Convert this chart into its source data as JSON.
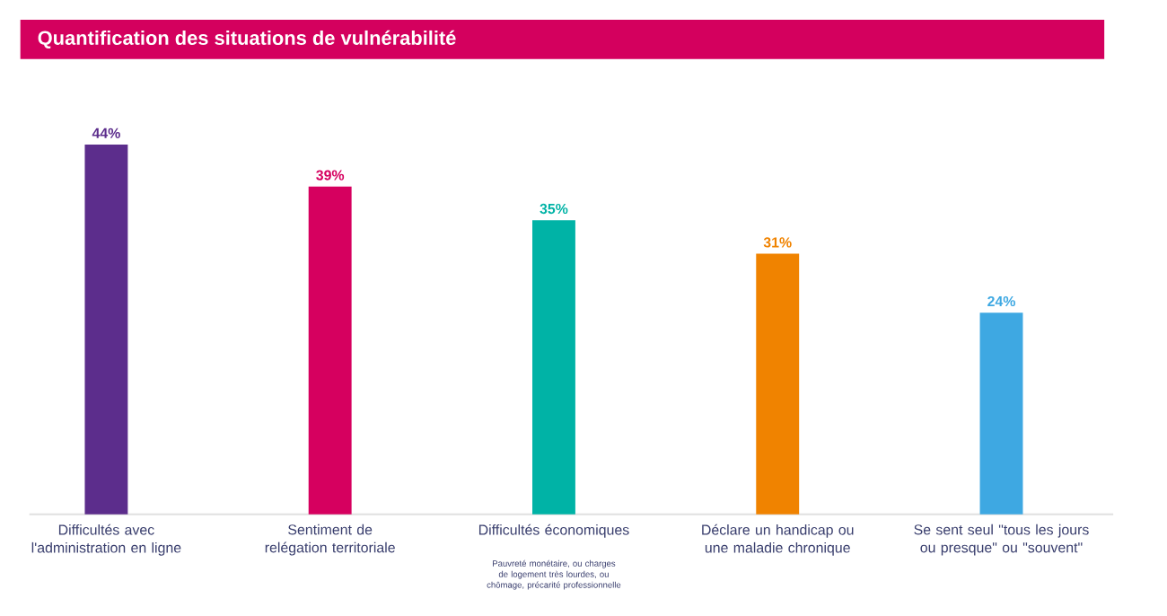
{
  "chart_data": {
    "type": "bar",
    "title": "Quantification des situations de vulnérabilité",
    "categories": [
      "Difficultés avec l'administration en ligne",
      "Sentiment de relégation territoriale",
      "Difficultés économiques",
      "Déclare un handicap ou une maladie chronique",
      "Se sent seul \"tous les jours ou presque\" ou \"souvent\""
    ],
    "values": [
      44,
      39,
      35,
      31,
      24
    ],
    "value_labels": [
      "44%",
      "39%",
      "35%",
      "31%",
      "24%"
    ],
    "colors": [
      "#5c2d8c",
      "#d6005f",
      "#00b3a6",
      "#f08300",
      "#3ea8e2"
    ],
    "annotations": [
      "Pauvreté monétaire, ou charges de logement très lourdes, ou chômage, précarité professionnelle"
    ]
  }
}
